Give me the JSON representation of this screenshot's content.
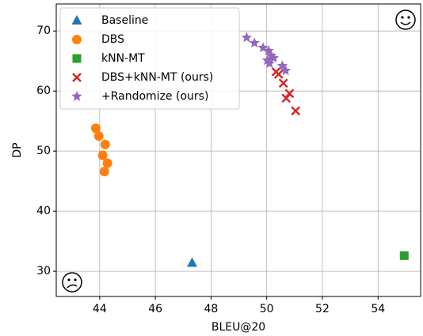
{
  "chart_data": {
    "type": "scatter",
    "xlabel": "BLEU@20",
    "ylabel": "DP",
    "xlim": [
      42.44,
      55.53
    ],
    "ylim": [
      25.8,
      74.5
    ],
    "xticks": [
      44,
      46,
      48,
      50,
      52,
      54
    ],
    "yticks": [
      30,
      40,
      50,
      60,
      70
    ],
    "grid": true,
    "legend": "upper left",
    "series": [
      {
        "name": "Baseline",
        "color": "#1f77b4",
        "marker": "triangle",
        "x": [
          47.32
        ],
        "values": [
          31.4
        ]
      },
      {
        "name": "DBS",
        "color": "#ff7f0e",
        "marker": "circle",
        "x": [
          43.86,
          43.97,
          44.2,
          44.11,
          44.28,
          44.17
        ],
        "values": [
          53.8,
          52.5,
          51.1,
          49.3,
          48.0,
          46.6
        ]
      },
      {
        "name": "kNN-MT",
        "color": "#2ca02c",
        "marker": "square",
        "x": [
          54.94
        ],
        "values": [
          32.6
        ]
      },
      {
        "name": "DBS+kNN-MT (ours)",
        "color": "#d62728",
        "marker": "x",
        "x": [
          50.34,
          50.43,
          50.6,
          50.82,
          50.7,
          51.04
        ],
        "values": [
          63.2,
          62.8,
          61.3,
          59.6,
          58.8,
          56.7
        ]
      },
      {
        "name": "+Randomize (ours)",
        "color": "#9467bd",
        "marker": "star",
        "x": [
          49.28,
          49.56,
          49.87,
          50.07,
          50.16,
          50.02,
          50.25,
          50.56,
          50.68,
          50.1
        ],
        "values": [
          68.9,
          68.0,
          67.2,
          66.7,
          65.9,
          65.1,
          65.5,
          64.2,
          63.4,
          64.6
        ]
      }
    ]
  }
}
